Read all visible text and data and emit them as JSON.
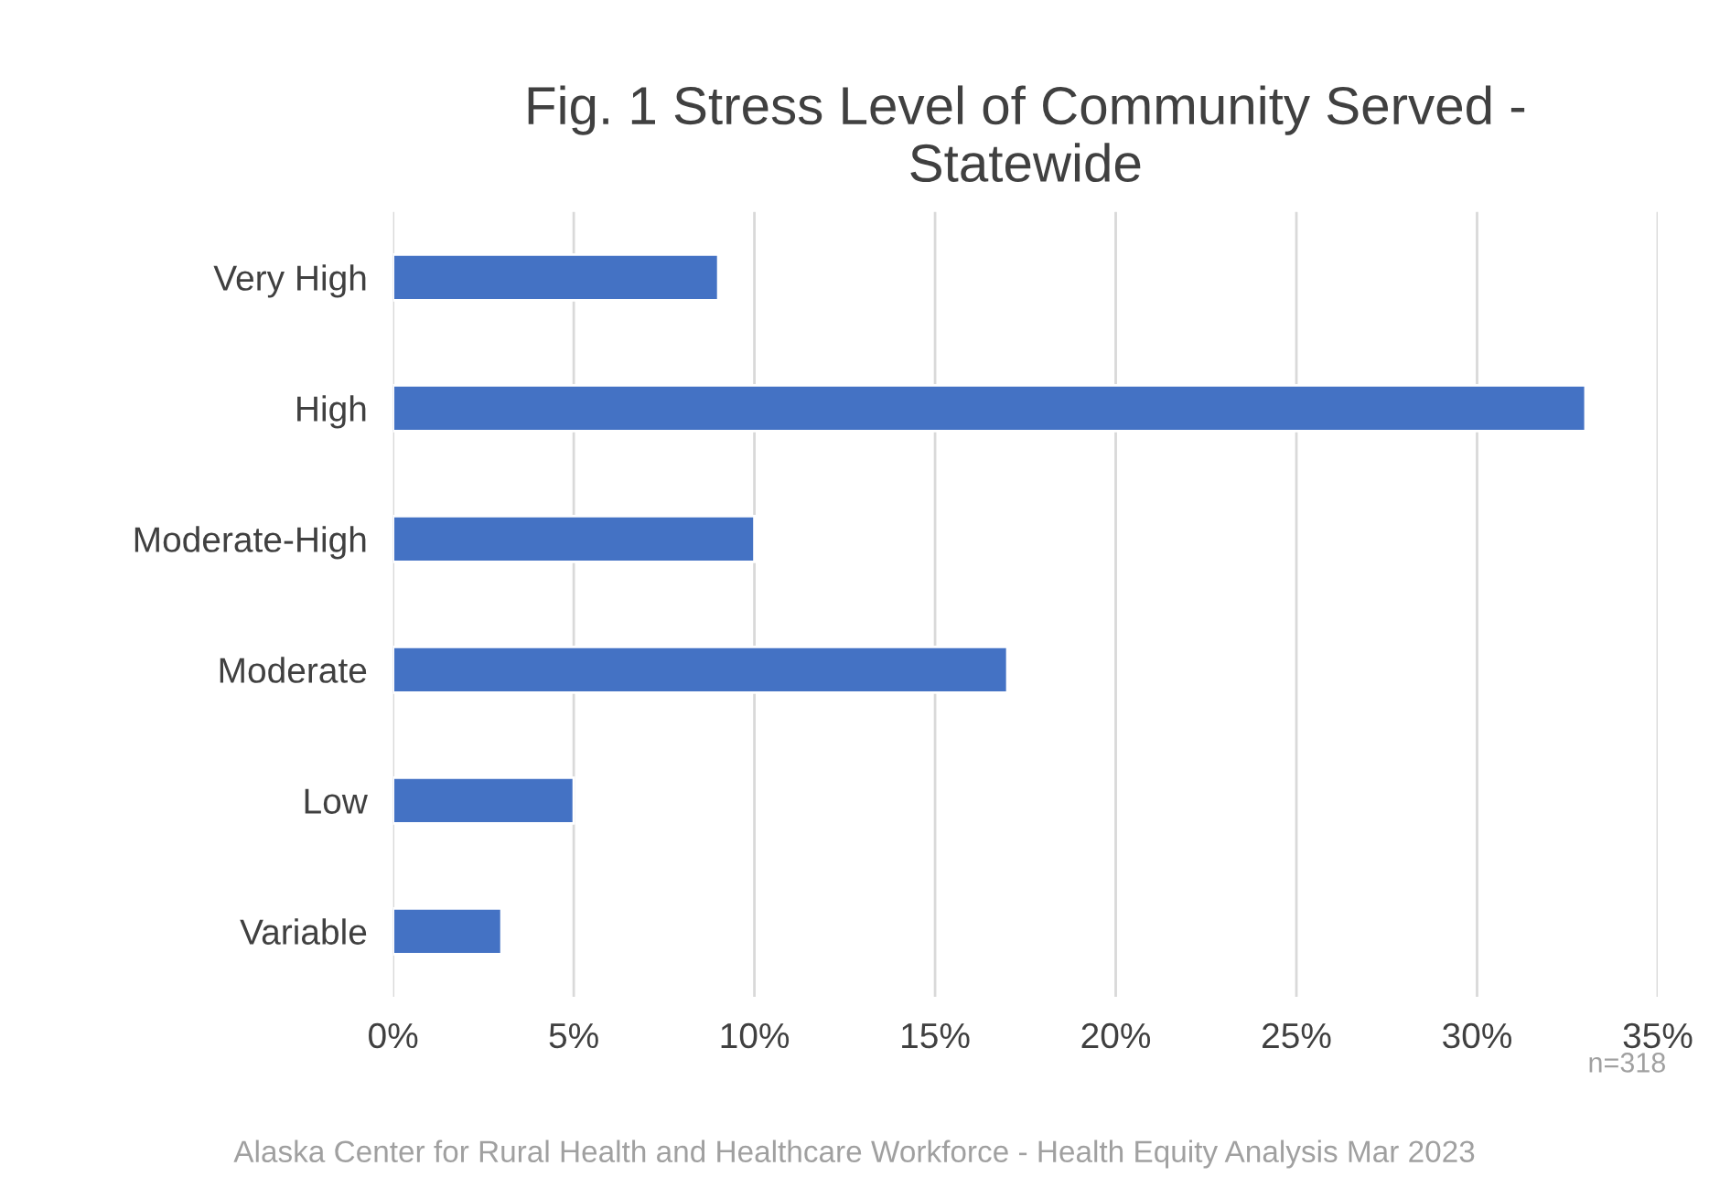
{
  "chart_data": {
    "type": "bar",
    "orientation": "horizontal",
    "title": "Fig. 1 Stress Level of Community Served -\nStatewide",
    "categories": [
      "Very High",
      "High",
      "Moderate-High",
      "Moderate",
      "Low",
      "Variable"
    ],
    "values": [
      9,
      33,
      10,
      17,
      5,
      3
    ],
    "color": "#4472c4",
    "xlim": [
      0,
      35
    ],
    "xticks": [
      {
        "value": 0,
        "label": "0%"
      },
      {
        "value": 5,
        "label": "5%"
      },
      {
        "value": 10,
        "label": "10%"
      },
      {
        "value": 15,
        "label": "15%"
      },
      {
        "value": 20,
        "label": "20%"
      },
      {
        "value": 25,
        "label": "25%"
      },
      {
        "value": 30,
        "label": "30%"
      },
      {
        "value": 35,
        "label": "35%"
      }
    ],
    "grid": "x",
    "annotations": [
      "n=318",
      "Alaska Center for Rural Health and Healthcare Workforce - Health Equity Analysis Mar 2023"
    ]
  }
}
